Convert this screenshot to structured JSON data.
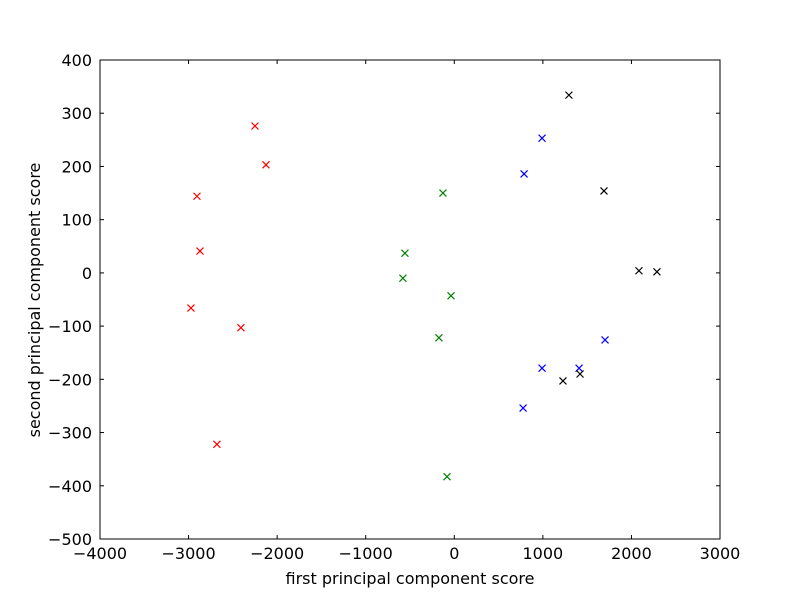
{
  "chart_data": {
    "type": "scatter",
    "xlabel": "first principal component score",
    "ylabel": "second principal component score",
    "xlim": [
      -4000,
      3000
    ],
    "ylim": [
      -500,
      400
    ],
    "xticks": [
      {
        "value": -4000,
        "label": "−4000"
      },
      {
        "value": -3000,
        "label": "−3000"
      },
      {
        "value": -2000,
        "label": "−2000"
      },
      {
        "value": -1000,
        "label": "−1000"
      },
      0,
      1000,
      2000,
      3000
    ],
    "yticks": [
      {
        "value": -500,
        "label": "−500"
      },
      {
        "value": -400,
        "label": "−400"
      },
      {
        "value": -300,
        "label": "−300"
      },
      {
        "value": -200,
        "label": "−200"
      },
      {
        "value": -100,
        "label": "−100"
      },
      0,
      100,
      200,
      300,
      400
    ],
    "marker": "x",
    "series": [
      {
        "color": "#ff0000",
        "x": [
          -2250,
          -2126,
          -2905,
          -2871,
          -2973,
          -2409,
          -2680
        ],
        "values": [
          276,
          203,
          144,
          41,
          -66,
          -103,
          -322
        ]
      },
      {
        "color": "#008000",
        "x": [
          -128,
          -557,
          -580,
          -37,
          -173,
          -82
        ],
        "values": [
          150,
          37,
          -10,
          -43,
          -122,
          -383
        ]
      },
      {
        "color": "#0000ff",
        "x": [
          991,
          788,
          991,
          1409,
          1702,
          777
        ],
        "values": [
          253,
          186,
          -179,
          -179,
          -126,
          -254
        ]
      },
      {
        "color": "#000000",
        "x": [
          1294,
          1690,
          2085,
          2288,
          1227,
          1420
        ],
        "values": [
          334,
          154,
          4,
          2,
          -203,
          -190
        ]
      }
    ]
  }
}
